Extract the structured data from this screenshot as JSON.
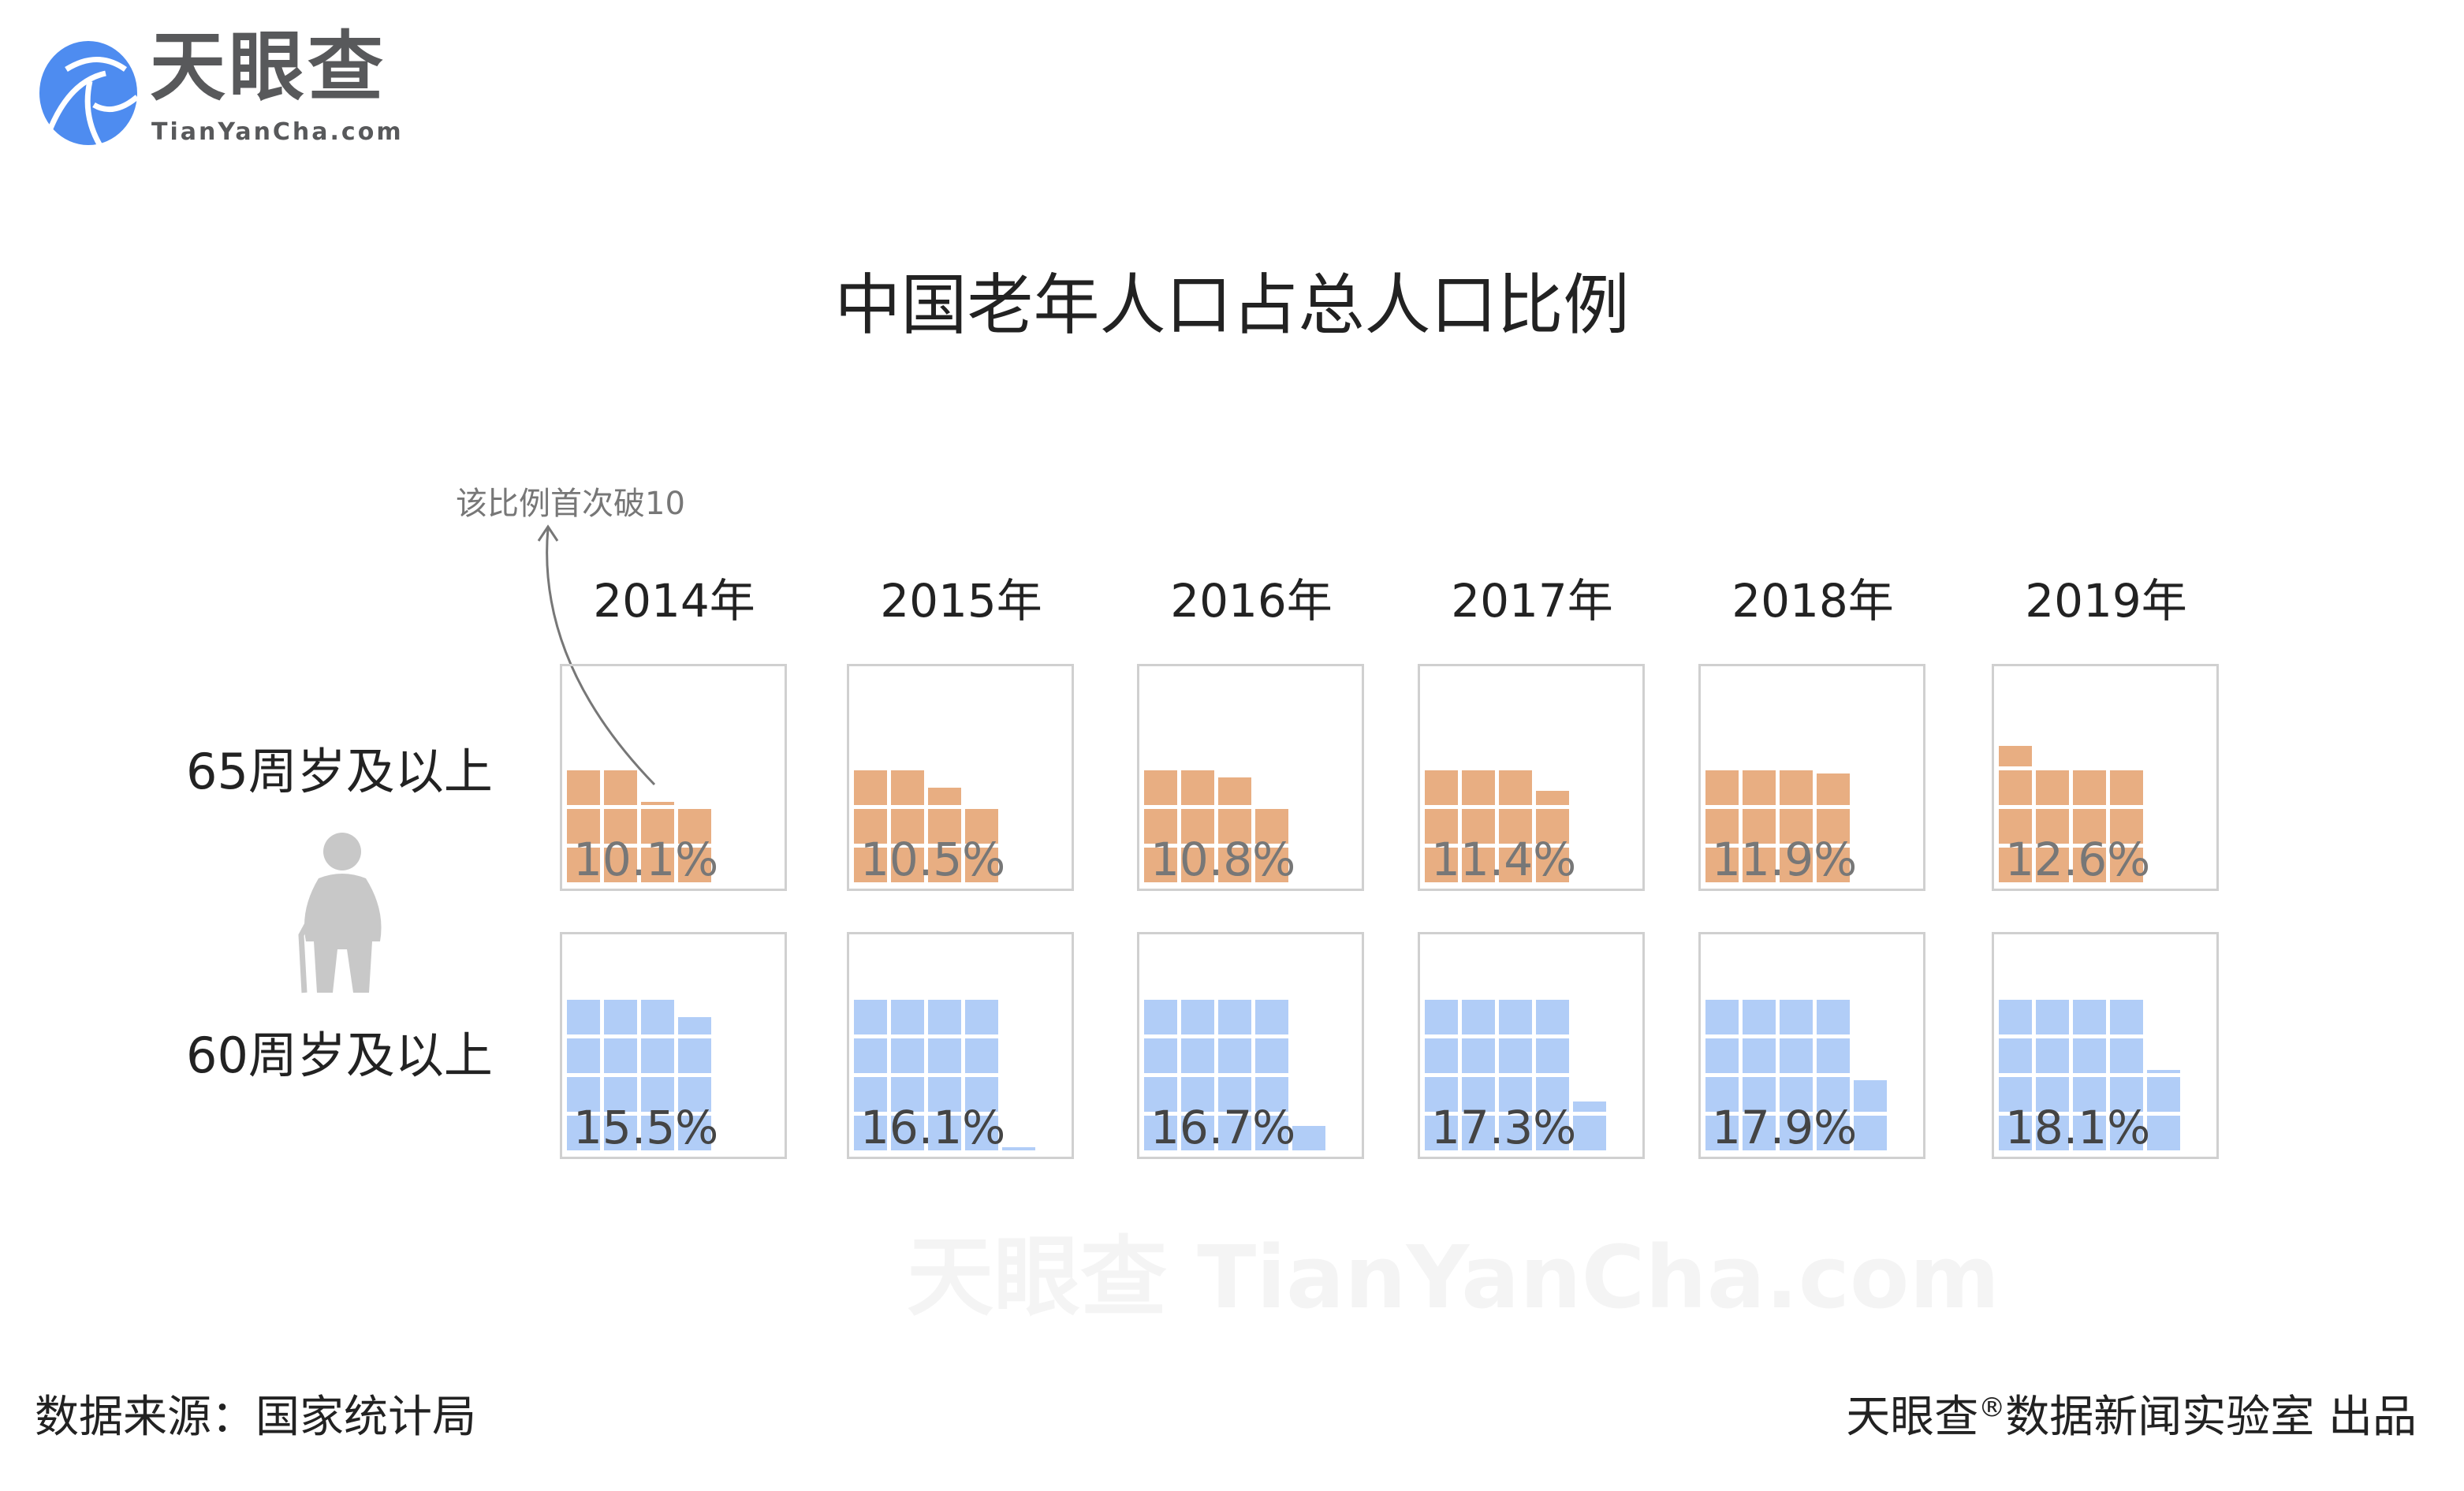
{
  "logo": {
    "name": "天眼查",
    "domain": "TianYanCha.com",
    "brand_color": "#4E8CF0"
  },
  "watermark": "天眼查 TianYanCha.com",
  "annotation": "该比例首次破10",
  "footer": {
    "source": "数据来源：国家统计局",
    "brand": "天眼查",
    "registered": "®",
    "publisher": "数据新闻实验室 出品"
  },
  "chart_data": {
    "type": "waffle",
    "title": "中国老年人口占总人口比例",
    "unit": "%",
    "categories": [
      "2014年",
      "2015年",
      "2016年",
      "2017年",
      "2018年",
      "2019年"
    ],
    "series": [
      {
        "name": "65周岁及以上",
        "color": "#E8AE82",
        "label_color": "#777777",
        "values": [
          10.1,
          10.5,
          10.8,
          11.4,
          11.9,
          12.6
        ],
        "labels": [
          "10.1%",
          "10.5%",
          "10.8%",
          "11.4%",
          "11.9%",
          "12.6%"
        ]
      },
      {
        "name": "60周岁及以上",
        "color": "#B1CDF7",
        "label_color": "#444444",
        "values": [
          15.5,
          16.1,
          16.7,
          17.3,
          17.9,
          18.1
        ],
        "labels": [
          "15.5%",
          "16.1%",
          "16.7%",
          "17.3%",
          "17.9%",
          "18.1%"
        ]
      }
    ]
  }
}
